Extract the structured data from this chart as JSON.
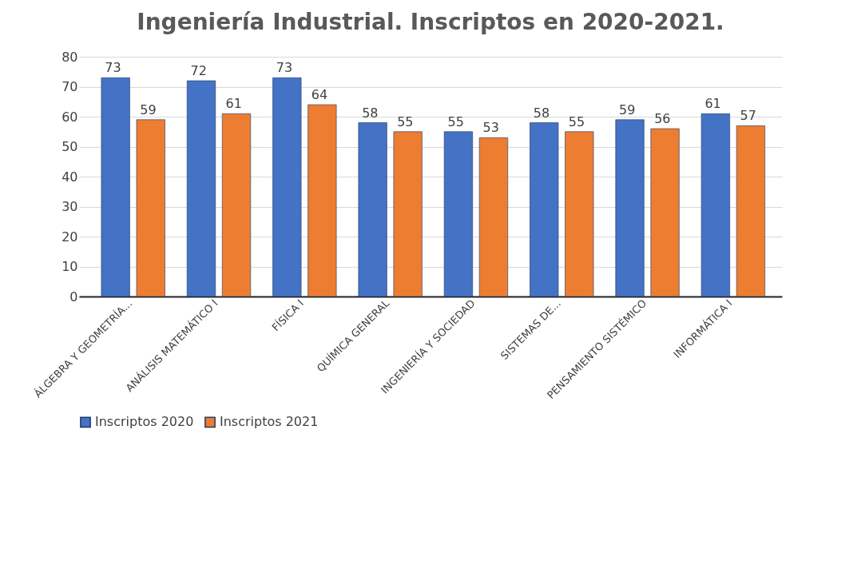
{
  "chart_data": {
    "type": "bar",
    "title": "Ingeniería Industrial. Inscriptos en 2020-2021.",
    "categories": [
      "ÁLGEBRA Y GEOMETRÍA...",
      "ANÁLISIS MATEMÁTICO I",
      "FÍSICA I",
      "QUÍMICA GENERAL",
      "INGENIERÍA Y SOCIEDAD",
      "SISTEMAS DE...",
      "PENSAMIENTO SISTÉMICO",
      "INFORMÁTICA I"
    ],
    "series": [
      {
        "name": "Inscriptos 2020",
        "color": "#4472c4",
        "values": [
          73,
          72,
          73,
          58,
          55,
          58,
          59,
          61
        ]
      },
      {
        "name": "Inscriptos 2021",
        "color": "#ed7d31",
        "values": [
          59,
          61,
          64,
          55,
          53,
          55,
          56,
          57
        ]
      }
    ],
    "ylim": [
      0,
      80
    ],
    "yticks": [
      0,
      10,
      20,
      30,
      40,
      50,
      60,
      70,
      80
    ],
    "grid": "y",
    "legend": "bottom",
    "data_labels": true
  }
}
